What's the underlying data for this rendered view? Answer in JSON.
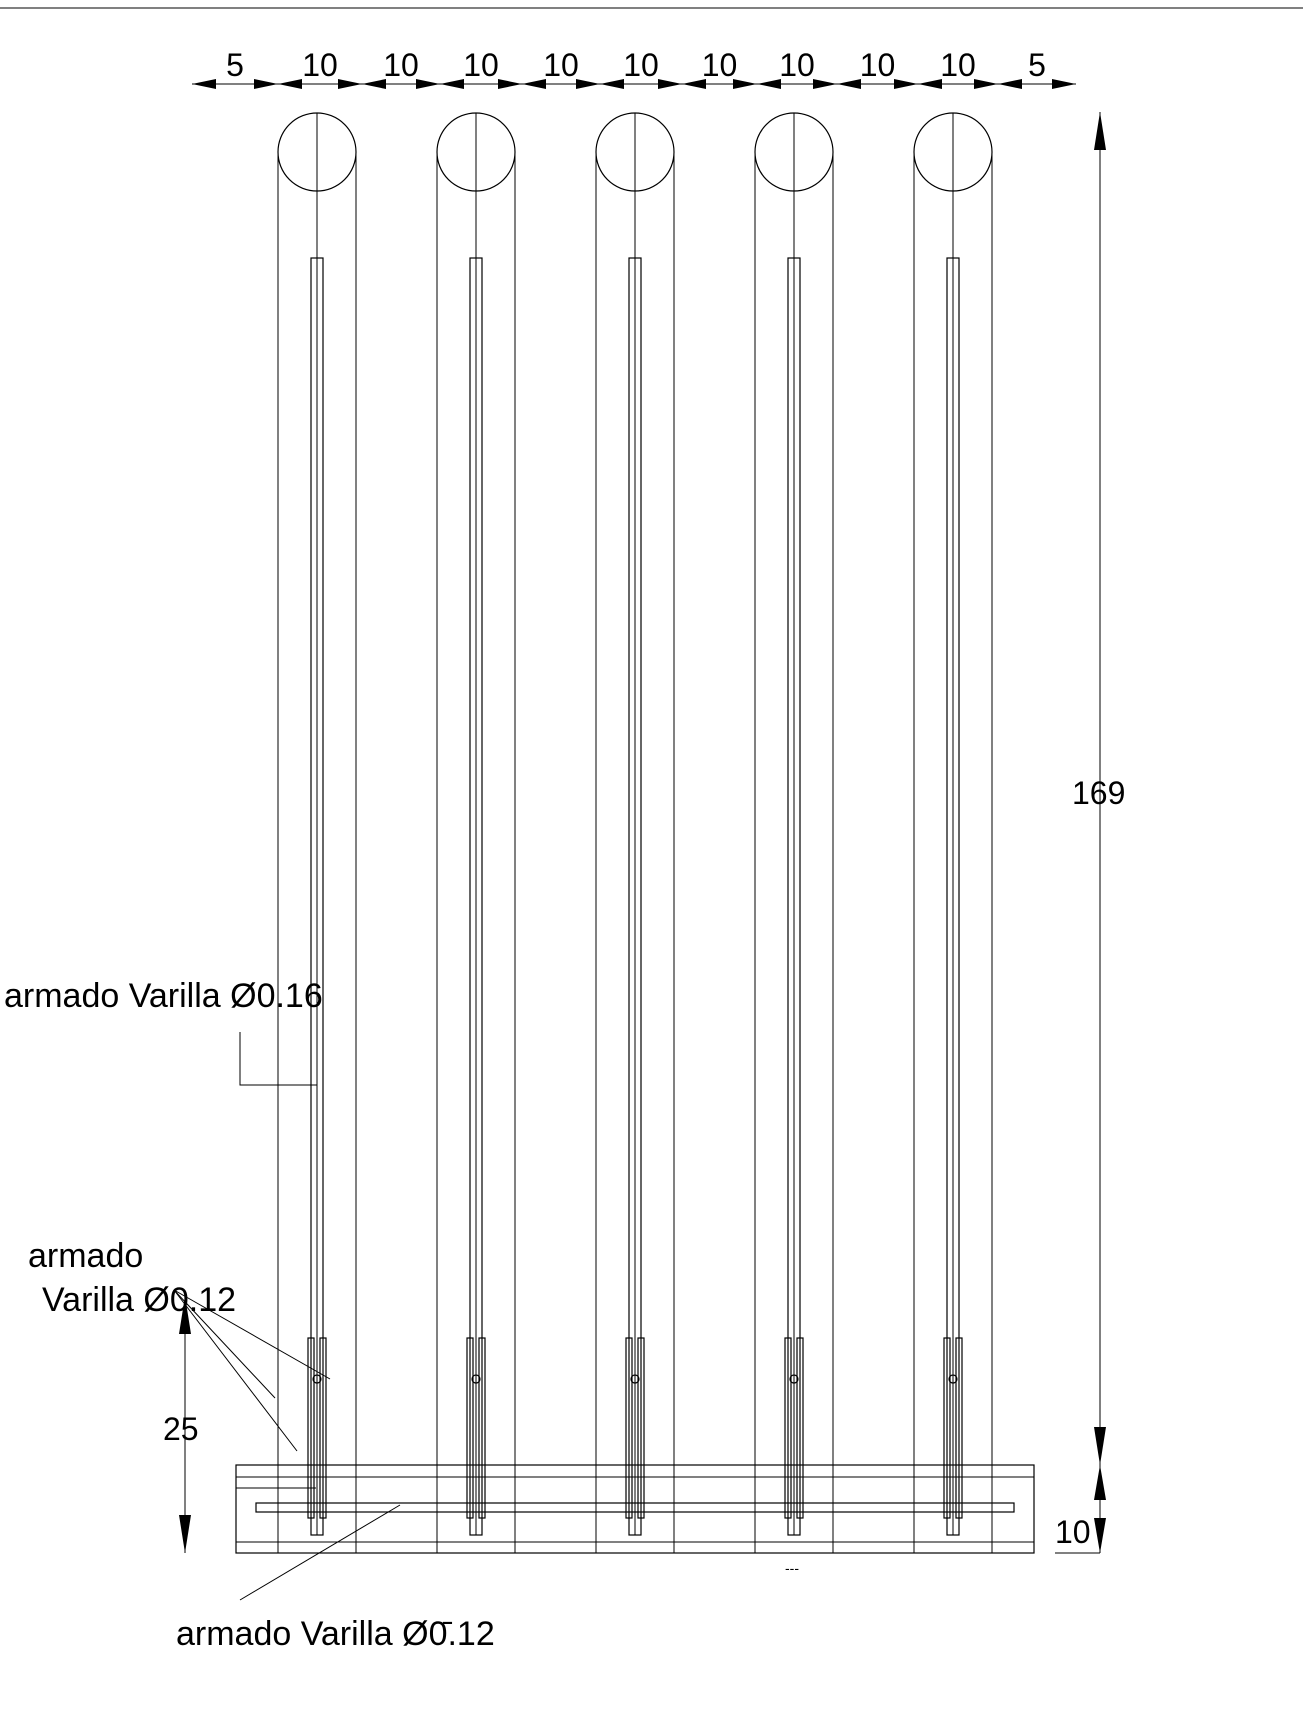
{
  "drawing": {
    "top_dimensions": [
      "5",
      "10",
      "10",
      "10",
      "10",
      "10",
      "10",
      "10",
      "10",
      "10",
      "5"
    ],
    "height_dimension": "169",
    "lower_dimension": "25",
    "base_dimension": "10",
    "small_mark": "---",
    "labels": {
      "top_bar": "armado Varilla Ø0.16",
      "mid_bar_line1": "armado",
      "mid_bar_line2": "Varilla Ø0.12",
      "bottom_bar": "armado Varilla Ø0̄.12"
    },
    "columns_count": 5
  }
}
